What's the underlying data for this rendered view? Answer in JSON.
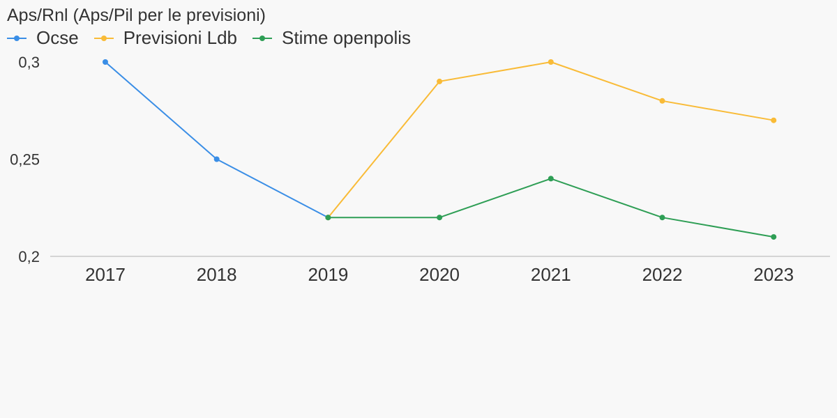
{
  "chart_data": {
    "type": "line",
    "title": "Aps/Rnl (Aps/Pil per le previsioni)",
    "categories": [
      "2017",
      "2018",
      "2019",
      "2020",
      "2021",
      "2022",
      "2023"
    ],
    "ylim": [
      0.2,
      0.3
    ],
    "yticks": [
      {
        "value": 0.2,
        "label": "0,2"
      },
      {
        "value": 0.25,
        "label": "0,25"
      },
      {
        "value": 0.3,
        "label": "0,3"
      }
    ],
    "grid": false,
    "legend_position": "top-left",
    "series": [
      {
        "name": "Ocse",
        "color": "#3a8ee6",
        "values": [
          0.3,
          0.25,
          0.22,
          null,
          null,
          null,
          null
        ]
      },
      {
        "name": "Previsioni Ldb",
        "color": "#f9bb37",
        "values": [
          null,
          null,
          0.22,
          0.29,
          0.3,
          0.28,
          0.27
        ]
      },
      {
        "name": "Stime openpolis",
        "color": "#2e9e55",
        "values": [
          null,
          null,
          0.22,
          0.22,
          0.24,
          0.22,
          0.21
        ]
      }
    ]
  }
}
